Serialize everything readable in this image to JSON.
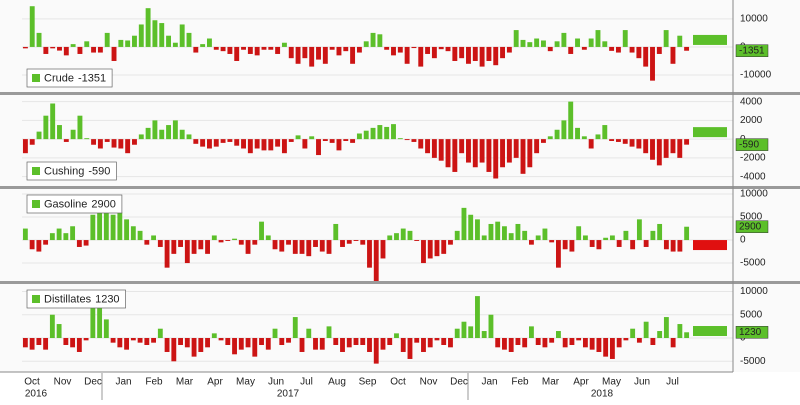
{
  "chart_data": [
    {
      "type": "bar",
      "name": "Crude",
      "positive_color": "#5cbf2a",
      "negative_color": "#cc1414",
      "box_color": "#5cbf2a",
      "legend_position": "bottom-left",
      "ylim": [
        -16400,
        16000
      ],
      "yticks": [
        -10000,
        0,
        10000
      ],
      "values": [
        -500,
        14500,
        5000,
        -2500,
        -500,
        -1300,
        -3000,
        1000,
        -2500,
        2000,
        -2000,
        -2000,
        5000,
        -5000,
        2500,
        2300,
        4000,
        8000,
        13800,
        9500,
        8500,
        4000,
        1500,
        8000,
        5000,
        -2000,
        1000,
        3000,
        -1000,
        -1500,
        -2500,
        -5000,
        -1000,
        -2500,
        -3000,
        -1000,
        -1000,
        -2500,
        1500,
        -4000,
        -6000,
        -4000,
        -7000,
        -4500,
        -6000,
        -1000,
        -3000,
        -1500,
        -6000,
        -2000,
        2000,
        5000,
        4500,
        -1000,
        -3000,
        -2000,
        -6000,
        -400,
        -7000,
        -2500,
        -4000,
        -800,
        -1500,
        -5000,
        -4000,
        -6000,
        -5000,
        -7000,
        -5000,
        -6500,
        -4000,
        -2000,
        6000,
        2500,
        1700,
        3000,
        2300,
        -1500,
        2000,
        5000,
        -2500,
        3000,
        -1000,
        3000,
        6000,
        2000,
        -1400,
        -2000,
        6000,
        -2000,
        -4000,
        -7000,
        -12000,
        -2500,
        6000,
        -6000,
        4000,
        -1351
      ]
    },
    {
      "type": "bar",
      "name": "Cushing",
      "positive_color": "#5cbf2a",
      "negative_color": "#cc1414",
      "box_color": "#5cbf2a",
      "legend_position": "bottom-left",
      "ylim": [
        -5000,
        4600
      ],
      "yticks": [
        -4000,
        -2000,
        0,
        2000,
        4000
      ],
      "values": [
        -1500,
        -600,
        800,
        2500,
        3800,
        1500,
        -300,
        1000,
        2500,
        100,
        -600,
        -1000,
        -300,
        -900,
        -1000,
        -1500,
        -600,
        500,
        1200,
        2000,
        1000,
        1500,
        2000,
        1000,
        500,
        -500,
        -800,
        -1000,
        -800,
        -400,
        -300,
        -700,
        -1000,
        -1500,
        -1000,
        -1200,
        -1200,
        -800,
        -1500,
        -300,
        400,
        -1000,
        300,
        -1700,
        -200,
        -400,
        -1200,
        -200,
        -400,
        600,
        900,
        1200,
        1500,
        1300,
        1600,
        100,
        -100,
        -300,
        -1000,
        -1500,
        -2000,
        -2300,
        -3000,
        -3500,
        -1500,
        -2500,
        -3000,
        -2500,
        -3500,
        -4200,
        -3000,
        -2500,
        -2000,
        -3700,
        -3000,
        -1500,
        -400,
        300,
        1000,
        2000,
        4000,
        1200,
        300,
        -1000,
        500,
        1500,
        -200,
        -300,
        -500,
        -800,
        -1000,
        -1500,
        -2200,
        -2800,
        -2000,
        -1500,
        -2000,
        -590
      ]
    },
    {
      "type": "bar",
      "name": "Gasoline",
      "positive_color": "#5cbf2a",
      "negative_color": "#cc1414",
      "box_color": "#e01010",
      "legend_position": "top-left",
      "ylim": [
        -8900,
        11100
      ],
      "yticks": [
        -5000,
        0,
        5000,
        10000
      ],
      "values": [
        2500,
        -2000,
        -2500,
        -1000,
        1500,
        2500,
        1500,
        3000,
        -1500,
        -1200,
        5500,
        7000,
        6500,
        5500,
        6000,
        4500,
        3000,
        2000,
        -1000,
        1000,
        -1500,
        -6000,
        -3000,
        -1500,
        -5000,
        -3000,
        -2000,
        -3000,
        1000,
        -500,
        -200,
        300,
        -1000,
        -3000,
        -1000,
        4000,
        1000,
        -2000,
        -2500,
        -1000,
        -3000,
        -3000,
        -3500,
        -1500,
        -2500,
        -3000,
        3500,
        -1500,
        -800,
        -200,
        -1000,
        -6000,
        -9000,
        -4000,
        1000,
        1500,
        2500,
        2000,
        -200,
        -5000,
        -4000,
        -3500,
        -3000,
        -1000,
        2000,
        7000,
        5500,
        4500,
        1000,
        3500,
        4000,
        3000,
        1500,
        3500,
        2000,
        -1000,
        1000,
        2500,
        -500,
        -6000,
        -2000,
        -2500,
        3000,
        1000,
        -1500,
        -2000,
        500,
        1000,
        -1500,
        2000,
        -2000,
        4500,
        -1500,
        2000,
        3500,
        -2000,
        -2500,
        -2500,
        2900
      ]
    },
    {
      "type": "bar",
      "name": "Distillates",
      "positive_color": "#5cbf2a",
      "negative_color": "#cc1414",
      "box_color": "#5cbf2a",
      "legend_position": "top-left",
      "ylim": [
        -7300,
        11600
      ],
      "yticks": [
        -5000,
        0,
        5000,
        10000
      ],
      "values": [
        -2000,
        -2500,
        -1500,
        -2500,
        5000,
        3000,
        -1500,
        -2000,
        -3000,
        -500,
        8000,
        7000,
        4000,
        -1000,
        -2000,
        -2500,
        -500,
        -1000,
        -1500,
        -1000,
        2000,
        -3000,
        -5000,
        -1500,
        -2000,
        -4000,
        -3000,
        -2000,
        1000,
        -500,
        -1500,
        -3500,
        -2500,
        -2000,
        -4000,
        -1500,
        -2500,
        2000,
        -1500,
        -1000,
        4500,
        -3000,
        2000,
        -2500,
        -2500,
        2500,
        -1500,
        -3000,
        -2000,
        -1500,
        -1500,
        -3000,
        -5500,
        -2500,
        -1500,
        1000,
        -3000,
        -4500,
        -1000,
        -3000,
        -2000,
        -500,
        -1500,
        -2000,
        2000,
        3500,
        2500,
        9000,
        1500,
        5000,
        -2000,
        -2500,
        -3000,
        -1500,
        -2000,
        2500,
        -1500,
        -2000,
        -1000,
        1500,
        -2000,
        -1500,
        -500,
        -2000,
        -2500,
        -3000,
        -4000,
        -4500,
        -2000,
        -500,
        2000,
        -1000,
        3500,
        -1500,
        1500,
        4500,
        -2000,
        3000,
        1230
      ]
    }
  ],
  "x_axis": {
    "months": [
      "Oct",
      "Nov",
      "Dec",
      "Jan",
      "Feb",
      "Mar",
      "Apr",
      "May",
      "Jun",
      "Jul",
      "Aug",
      "Sep",
      "Oct",
      "Nov",
      "Dec",
      "Jan",
      "Feb",
      "Mar",
      "Apr",
      "May",
      "Jun",
      "Jul"
    ],
    "years": [
      "2016",
      "2017",
      "2018"
    ]
  }
}
